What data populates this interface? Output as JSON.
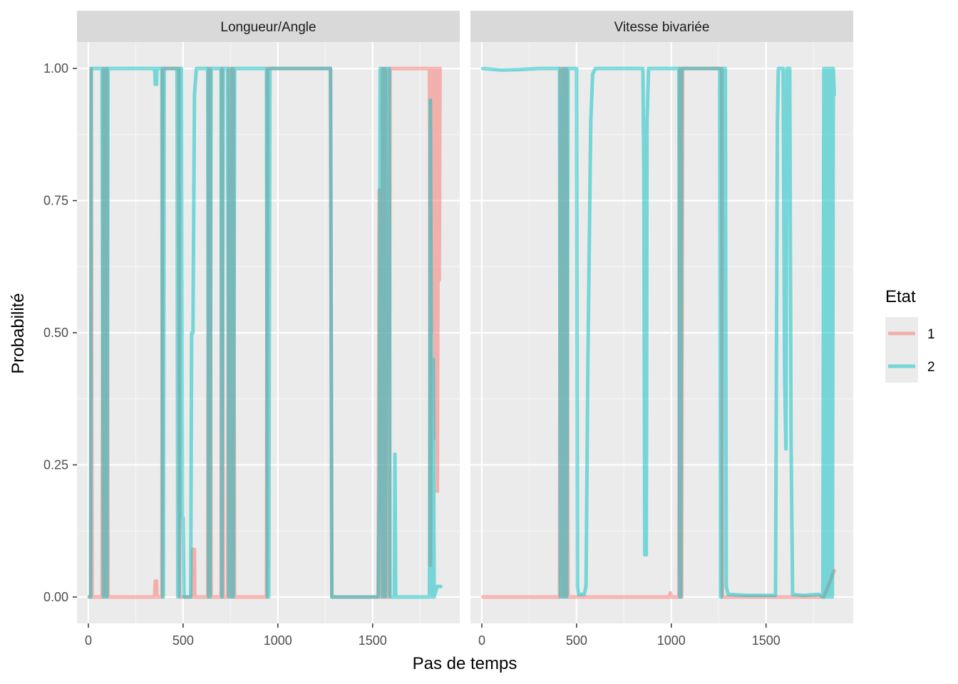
{
  "chart_data": {
    "type": "line",
    "xlabel": "Pas de temps",
    "ylabel": "Probabilité",
    "xlim": [
      -60,
      1960
    ],
    "ylim": [
      -0.05,
      1.05
    ],
    "x_ticks": [
      0,
      500,
      1000,
      1500
    ],
    "x_tick_labels": [
      "0",
      "500",
      "1000",
      "1500"
    ],
    "y_ticks": [
      0,
      0.25,
      0.5,
      0.75,
      1
    ],
    "y_tick_labels": [
      "0.00",
      "0.25",
      "0.50",
      "0.75",
      "1.00"
    ],
    "grid": true,
    "legend": {
      "title": "Etat",
      "position": "right",
      "entries": [
        {
          "label": "1",
          "color": "#F8766D"
        },
        {
          "label": "2",
          "color": "#00BFC4"
        }
      ]
    },
    "panels": [
      {
        "strip": "Longueur/Angle",
        "state2_path": [
          [
            5,
            0
          ],
          [
            12,
            0
          ],
          [
            15,
            1
          ],
          [
            72,
            1
          ],
          [
            80,
            0.0
          ],
          [
            86,
            1
          ],
          [
            92,
            1
          ],
          [
            98,
            0
          ],
          [
            104,
            1
          ],
          [
            350,
            1
          ],
          [
            353,
            0.97
          ],
          [
            360,
            0.97
          ],
          [
            362,
            1
          ],
          [
            388,
            1
          ],
          [
            392,
            0
          ],
          [
            396,
            0
          ],
          [
            400,
            1
          ],
          [
            468,
            1
          ],
          [
            472,
            0
          ],
          [
            478,
            0
          ],
          [
            482,
            1
          ],
          [
            492,
            1
          ],
          [
            496,
            0.15
          ],
          [
            500,
            0.15
          ],
          [
            505,
            0
          ],
          [
            540,
            0
          ],
          [
            545,
            0.5
          ],
          [
            552,
            0.5
          ],
          [
            560,
            0.95
          ],
          [
            570,
            1
          ],
          [
            630,
            1
          ],
          [
            635,
            0
          ],
          [
            642,
            0
          ],
          [
            648,
            1
          ],
          [
            700,
            1
          ],
          [
            705,
            0
          ],
          [
            712,
            1
          ],
          [
            735,
            1
          ],
          [
            742,
            0
          ],
          [
            750,
            0
          ],
          [
            756,
            1
          ],
          [
            760,
            1
          ],
          [
            765,
            0
          ],
          [
            772,
            1
          ],
          [
            940,
            1
          ],
          [
            945,
            0
          ],
          [
            952,
            0
          ],
          [
            958,
            1
          ],
          [
            965,
            1
          ],
          [
            1278,
            1
          ],
          [
            1285,
            0
          ],
          [
            1530,
            0
          ],
          [
            1535,
            0.23
          ],
          [
            1540,
            1
          ],
          [
            1550,
            1
          ],
          [
            1553,
            0
          ],
          [
            1558,
            0.97
          ],
          [
            1562,
            1
          ],
          [
            1568,
            0
          ],
          [
            1575,
            1
          ],
          [
            1588,
            1
          ],
          [
            1592,
            0
          ],
          [
            1615,
            0
          ],
          [
            1618,
            0.27
          ],
          [
            1622,
            0
          ],
          [
            1800,
            0
          ],
          [
            1805,
            0.94
          ],
          [
            1810,
            0.44
          ],
          [
            1815,
            0
          ],
          [
            1820,
            0.45
          ],
          [
            1825,
            0
          ],
          [
            1840,
            0.02
          ],
          [
            1860,
            0.02
          ]
        ],
        "state1_path": [
          [
            5,
            0
          ],
          [
            12,
            0
          ],
          [
            15,
            1
          ],
          [
            20,
            0
          ],
          [
            72,
            0
          ],
          [
            80,
            1
          ],
          [
            86,
            0
          ],
          [
            92,
            0
          ],
          [
            98,
            1
          ],
          [
            104,
            0
          ],
          [
            350,
            0
          ],
          [
            353,
            0.03
          ],
          [
            360,
            0.03
          ],
          [
            362,
            0
          ],
          [
            388,
            0
          ],
          [
            392,
            1
          ],
          [
            465,
            1
          ],
          [
            472,
            1
          ],
          [
            478,
            1
          ],
          [
            482,
            0
          ],
          [
            550,
            0
          ],
          [
            552,
            0.09
          ],
          [
            560,
            0.09
          ],
          [
            562,
            0
          ],
          [
            630,
            0
          ],
          [
            635,
            1
          ],
          [
            642,
            1
          ],
          [
            648,
            0
          ],
          [
            700,
            0
          ],
          [
            705,
            1
          ],
          [
            712,
            0
          ],
          [
            735,
            0
          ],
          [
            742,
            1
          ],
          [
            750,
            1
          ],
          [
            756,
            0
          ],
          [
            760,
            0
          ],
          [
            765,
            1
          ],
          [
            772,
            0
          ],
          [
            940,
            0
          ],
          [
            945,
            1
          ],
          [
            1278,
            1
          ],
          [
            1285,
            0
          ],
          [
            1530,
            0
          ],
          [
            1535,
            0.77
          ],
          [
            1540,
            0
          ],
          [
            1550,
            0
          ],
          [
            1553,
            1
          ],
          [
            1558,
            0.03
          ],
          [
            1562,
            0
          ],
          [
            1568,
            1
          ],
          [
            1575,
            0
          ],
          [
            1588,
            0
          ],
          [
            1592,
            1
          ],
          [
            1800,
            1
          ],
          [
            1805,
            0.06
          ],
          [
            1810,
            0.56
          ],
          [
            1812,
            1
          ],
          [
            1815,
            0.5
          ],
          [
            1820,
            0.55
          ],
          [
            1825,
            1
          ],
          [
            1832,
            0.3
          ],
          [
            1836,
            1
          ],
          [
            1842,
            0.2
          ],
          [
            1848,
            1
          ],
          [
            1852,
            0.6
          ],
          [
            1856,
            1
          ]
        ]
      },
      {
        "strip": "Vitesse bivariée",
        "state2_path": [
          [
            5,
            1
          ],
          [
            100,
            0.997
          ],
          [
            200,
            0.998
          ],
          [
            300,
            1
          ],
          [
            410,
            1
          ],
          [
            415,
            0
          ],
          [
            418,
            0.95
          ],
          [
            422,
            0
          ],
          [
            430,
            1
          ],
          [
            436,
            0
          ],
          [
            442,
            1
          ],
          [
            448,
            0
          ],
          [
            455,
            1
          ],
          [
            500,
            1
          ],
          [
            505,
            0.02
          ],
          [
            510,
            0.005
          ],
          [
            540,
            0.005
          ],
          [
            550,
            0.02
          ],
          [
            560,
            0.45
          ],
          [
            575,
            0.9
          ],
          [
            585,
            0.99
          ],
          [
            600,
            1
          ],
          [
            850,
            1
          ],
          [
            855,
            0.8
          ],
          [
            860,
            0.08
          ],
          [
            868,
            0.08
          ],
          [
            872,
            0.9
          ],
          [
            880,
            1
          ],
          [
            1040,
            1
          ],
          [
            1045,
            0
          ],
          [
            1050,
            0
          ],
          [
            1055,
            1
          ],
          [
            1255,
            1
          ],
          [
            1260,
            0
          ],
          [
            1265,
            0
          ],
          [
            1270,
            1
          ],
          [
            1285,
            1
          ],
          [
            1290,
            0.02
          ],
          [
            1300,
            0.005
          ],
          [
            1400,
            0.003
          ],
          [
            1500,
            0.003
          ],
          [
            1550,
            0.003
          ],
          [
            1560,
            0.9
          ],
          [
            1565,
            1
          ],
          [
            1590,
            1
          ],
          [
            1598,
            0.42
          ],
          [
            1605,
            0.28
          ],
          [
            1610,
            1
          ],
          [
            1625,
            1
          ],
          [
            1632,
            0.3
          ],
          [
            1640,
            0.005
          ],
          [
            1700,
            0.003
          ],
          [
            1780,
            0.005
          ],
          [
            1800,
            0
          ],
          [
            1805,
            1
          ],
          [
            1810,
            0
          ],
          [
            1815,
            1
          ],
          [
            1820,
            0
          ],
          [
            1825,
            1
          ],
          [
            1830,
            0
          ],
          [
            1835,
            1
          ],
          [
            1840,
            0
          ],
          [
            1845,
            1
          ],
          [
            1850,
            0
          ],
          [
            1855,
            1
          ],
          [
            1860,
            0.95
          ]
        ],
        "state1_path": [
          [
            5,
            0
          ],
          [
            410,
            0
          ],
          [
            415,
            1
          ],
          [
            418,
            0.05
          ],
          [
            422,
            1
          ],
          [
            430,
            0
          ],
          [
            436,
            1
          ],
          [
            442,
            0
          ],
          [
            448,
            1
          ],
          [
            455,
            0
          ],
          [
            990,
            0
          ],
          [
            995,
            0.008
          ],
          [
            1000,
            0
          ],
          [
            1040,
            0
          ],
          [
            1045,
            1
          ],
          [
            1050,
            1
          ],
          [
            1055,
            0
          ],
          [
            1060,
            1
          ],
          [
            1255,
            1
          ],
          [
            1260,
            1
          ],
          [
            1265,
            1
          ],
          [
            1270,
            0
          ],
          [
            1800,
            0
          ],
          [
            1805,
            0
          ],
          [
            1860,
            0.05
          ]
        ]
      }
    ]
  }
}
